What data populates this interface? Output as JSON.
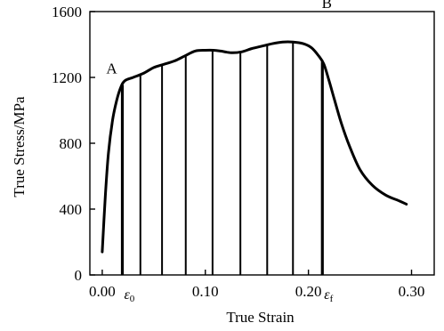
{
  "chart_data": {
    "type": "line",
    "xlabel": "True Strain",
    "ylabel": "True Stress/MPa",
    "xlim": [
      -0.012,
      0.322
    ],
    "ylim": [
      0,
      1600
    ],
    "x_ticks": [
      0.0,
      0.1,
      0.2,
      0.3
    ],
    "x_tick_labels": [
      "0.00",
      "0.10",
      "0.20",
      "0.30"
    ],
    "y_ticks": [
      0,
      400,
      800,
      1200,
      1600
    ],
    "y_tick_labels": [
      "0",
      "400",
      "800",
      "1200",
      "1600"
    ],
    "grid": false,
    "legend": "none",
    "series": [
      {
        "x": [
          0.0,
          0.003,
          0.006,
          0.01,
          0.014,
          0.018,
          0.022,
          0.03,
          0.04,
          0.05,
          0.06,
          0.07,
          0.08,
          0.09,
          0.1,
          0.108,
          0.115,
          0.125,
          0.135,
          0.145,
          0.155,
          0.165,
          0.175,
          0.185,
          0.195,
          0.203,
          0.21,
          0.215,
          0.22,
          0.225,
          0.232,
          0.24,
          0.25,
          0.262,
          0.275,
          0.288,
          0.295
        ],
        "y": [
          140,
          480,
          740,
          940,
          1060,
          1140,
          1180,
          1200,
          1225,
          1260,
          1280,
          1300,
          1330,
          1360,
          1365,
          1365,
          1360,
          1350,
          1355,
          1375,
          1390,
          1405,
          1415,
          1415,
          1405,
          1380,
          1330,
          1280,
          1180,
          1070,
          920,
          780,
          640,
          545,
          485,
          450,
          430
        ]
      }
    ],
    "vertical_lines_x": [
      0.0195,
      0.037,
      0.058,
      0.081,
      0.107,
      0.134,
      0.16,
      0.185,
      0.2135
    ],
    "point_labels": [
      {
        "text": "A",
        "x": 0.0195,
        "y": 1150
      },
      {
        "text": "B",
        "x": 0.2135,
        "y": 1320
      }
    ],
    "axis_markers": [
      {
        "symbol": "ε",
        "subscript": "0",
        "x": 0.0195
      },
      {
        "symbol": "ε",
        "subscript": "f",
        "x": 0.2135
      }
    ]
  }
}
